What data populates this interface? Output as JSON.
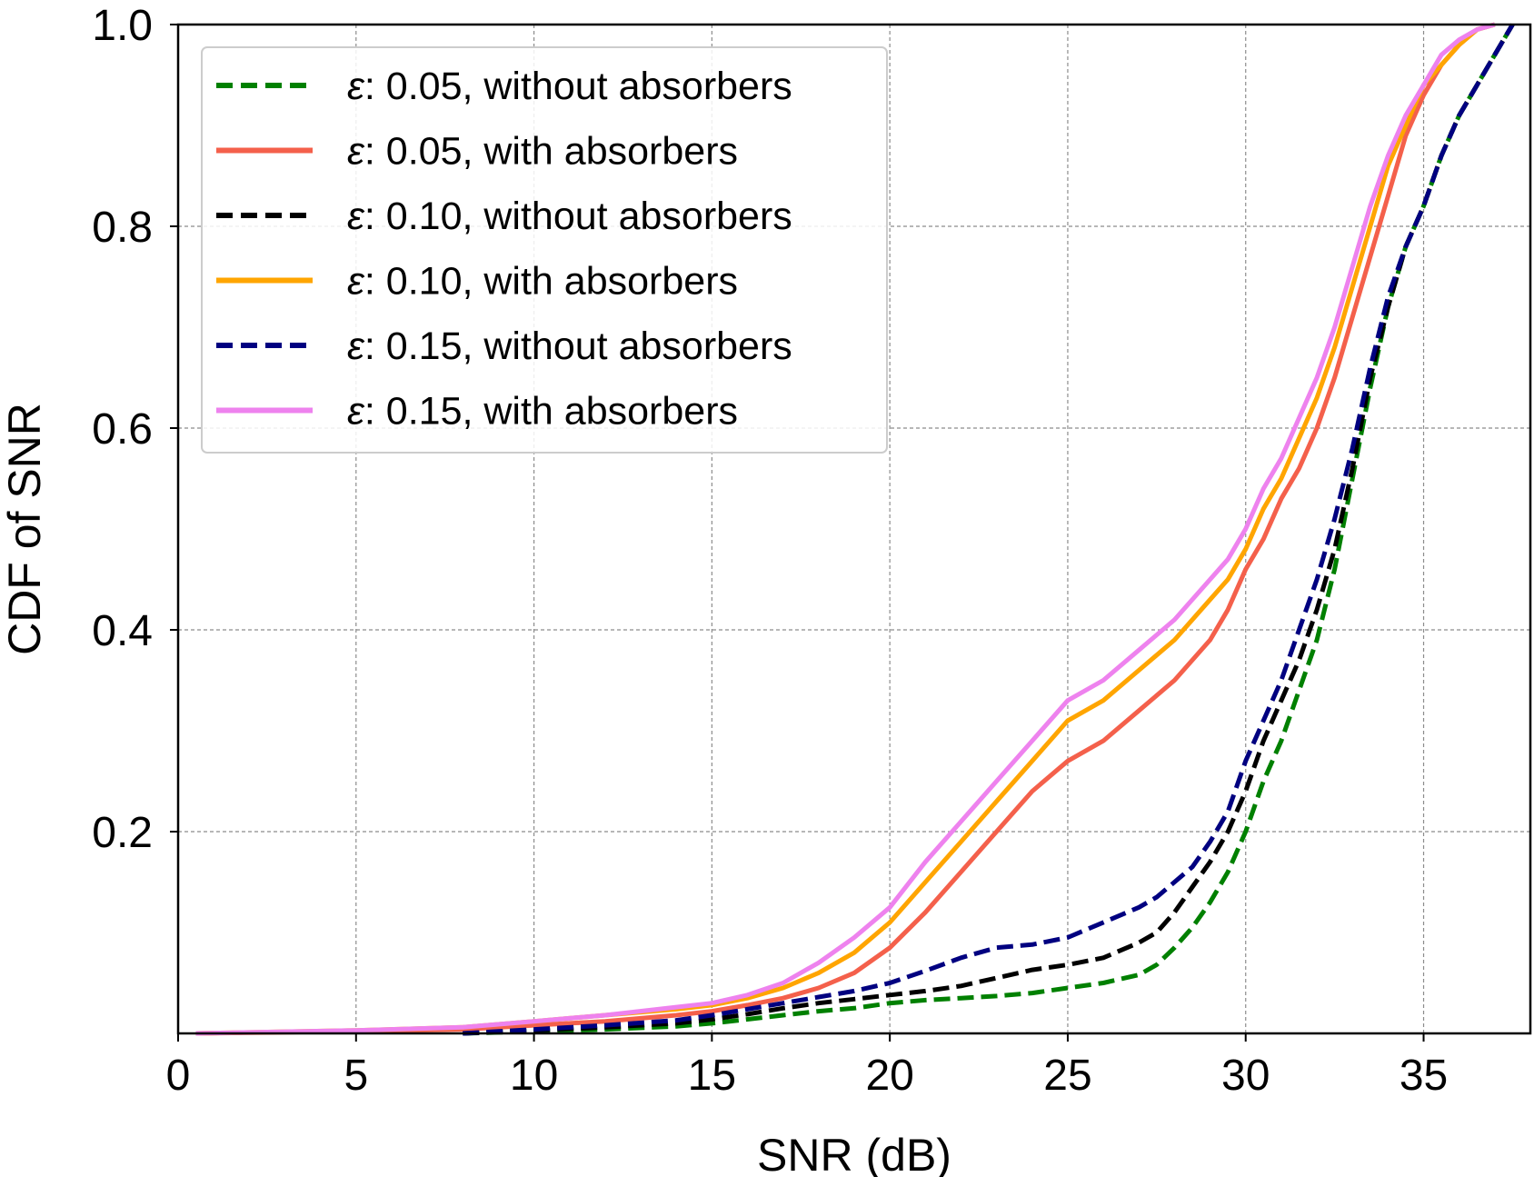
{
  "chart_data": {
    "type": "line",
    "xlabel": "SNR (dB)",
    "ylabel": "CDF of SNR",
    "xlim": [
      0,
      38
    ],
    "ylim": [
      0,
      1.0
    ],
    "xticks": [
      0,
      5,
      10,
      15,
      20,
      25,
      30,
      35
    ],
    "xtick_labels": [
      "0",
      "5",
      "10",
      "15",
      "20",
      "25",
      "30",
      "35"
    ],
    "yticks": [
      0.2,
      0.4,
      0.6,
      0.8,
      1.0
    ],
    "ytick_labels": [
      "0.2",
      "0.4",
      "0.6",
      "0.8",
      "1.0"
    ],
    "grid": true,
    "legend_position": "top-left",
    "series": [
      {
        "name_prefix": "ε",
        "name": ": 0.05, without absorbers",
        "color": "#008000",
        "style": "dashed",
        "x": [
          8,
          10,
          12,
          14,
          15,
          16,
          17,
          18,
          19,
          20,
          21,
          22,
          23,
          24,
          25,
          26,
          27,
          27.5,
          28,
          28.5,
          29,
          29.5,
          30,
          30.5,
          31,
          31.5,
          32,
          32.5,
          33,
          33.5,
          34,
          34.5,
          35,
          35.5,
          36,
          36.5,
          37,
          37.5
        ],
        "y": [
          0,
          0.002,
          0.004,
          0.007,
          0.01,
          0.014,
          0.018,
          0.022,
          0.025,
          0.03,
          0.033,
          0.035,
          0.037,
          0.04,
          0.045,
          0.05,
          0.058,
          0.068,
          0.085,
          0.105,
          0.13,
          0.16,
          0.2,
          0.25,
          0.29,
          0.34,
          0.39,
          0.46,
          0.55,
          0.64,
          0.72,
          0.78,
          0.82,
          0.87,
          0.91,
          0.94,
          0.97,
          1.0
        ]
      },
      {
        "name_prefix": "ε",
        "name": ": 0.05, with absorbers",
        "color": "#f4604b",
        "style": "solid",
        "x": [
          0.5,
          5,
          8,
          10,
          12,
          14,
          15,
          16,
          17,
          18,
          19,
          20,
          21,
          22,
          23,
          24,
          25,
          26,
          27,
          28,
          29,
          29.5,
          30,
          30.5,
          31,
          31.5,
          32,
          32.5,
          33,
          33.5,
          34,
          34.5,
          35,
          35.5,
          36,
          36.5,
          37
        ],
        "y": [
          0,
          0.002,
          0.004,
          0.008,
          0.012,
          0.018,
          0.022,
          0.028,
          0.035,
          0.045,
          0.06,
          0.085,
          0.12,
          0.16,
          0.2,
          0.24,
          0.27,
          0.29,
          0.32,
          0.35,
          0.39,
          0.42,
          0.46,
          0.49,
          0.53,
          0.56,
          0.6,
          0.65,
          0.71,
          0.77,
          0.83,
          0.89,
          0.93,
          0.96,
          0.98,
          0.995,
          1.0
        ]
      },
      {
        "name_prefix": "ε",
        "name": ": 0.10, without absorbers",
        "color": "#000000",
        "style": "dashed",
        "x": [
          8,
          10,
          12,
          14,
          15,
          16,
          17,
          18,
          19,
          20,
          21,
          22,
          23,
          24,
          25,
          26,
          27,
          27.5,
          28,
          28.5,
          29,
          29.5,
          30,
          30.5,
          31,
          31.5,
          32,
          32.5,
          33,
          33.5,
          34,
          34.5,
          35,
          35.5,
          36,
          36.5,
          37,
          37.5
        ],
        "y": [
          0,
          0.003,
          0.006,
          0.01,
          0.014,
          0.019,
          0.025,
          0.03,
          0.034,
          0.038,
          0.042,
          0.047,
          0.055,
          0.063,
          0.068,
          0.075,
          0.09,
          0.1,
          0.12,
          0.145,
          0.17,
          0.2,
          0.24,
          0.29,
          0.33,
          0.37,
          0.42,
          0.48,
          0.56,
          0.65,
          0.72,
          0.78,
          0.82,
          0.87,
          0.91,
          0.94,
          0.97,
          1.0
        ]
      },
      {
        "name_prefix": "ε",
        "name": ": 0.10, with absorbers",
        "color": "#ffa500",
        "style": "solid",
        "x": [
          0.5,
          5,
          8,
          10,
          12,
          14,
          15,
          16,
          17,
          18,
          19,
          20,
          21,
          22,
          23,
          24,
          25,
          26,
          27,
          28,
          29,
          29.5,
          30,
          30.5,
          31,
          31.5,
          32,
          32.5,
          33,
          33.5,
          34,
          34.5,
          35,
          35.5,
          36,
          36.5,
          37
        ],
        "y": [
          0,
          0.003,
          0.006,
          0.012,
          0.018,
          0.024,
          0.028,
          0.035,
          0.045,
          0.06,
          0.08,
          0.11,
          0.15,
          0.19,
          0.23,
          0.27,
          0.31,
          0.33,
          0.36,
          0.39,
          0.43,
          0.45,
          0.48,
          0.52,
          0.55,
          0.59,
          0.63,
          0.68,
          0.74,
          0.8,
          0.86,
          0.9,
          0.94,
          0.96,
          0.98,
          0.995,
          1.0
        ]
      },
      {
        "name_prefix": "ε",
        "name": ": 0.15, without absorbers",
        "color": "#000080",
        "style": "dashed",
        "x": [
          8,
          10,
          12,
          14,
          15,
          16,
          17,
          18,
          19,
          20,
          21,
          22,
          23,
          24,
          25,
          26,
          27,
          27.5,
          28,
          28.5,
          29,
          29.5,
          30,
          30.5,
          31,
          31.5,
          32,
          32.5,
          33,
          33.5,
          34,
          34.5,
          35,
          35.5,
          36,
          36.5,
          37,
          37.5
        ],
        "y": [
          0,
          0.004,
          0.008,
          0.013,
          0.018,
          0.024,
          0.03,
          0.036,
          0.042,
          0.05,
          0.062,
          0.075,
          0.085,
          0.088,
          0.095,
          0.11,
          0.125,
          0.135,
          0.15,
          0.165,
          0.19,
          0.22,
          0.27,
          0.31,
          0.35,
          0.4,
          0.45,
          0.51,
          0.58,
          0.66,
          0.73,
          0.78,
          0.82,
          0.87,
          0.91,
          0.94,
          0.97,
          1.0
        ]
      },
      {
        "name_prefix": "ε",
        "name": ": 0.15, with absorbers",
        "color": "#ee82ee",
        "style": "solid",
        "x": [
          0.5,
          5,
          8,
          10,
          12,
          14,
          15,
          16,
          17,
          18,
          19,
          20,
          21,
          22,
          23,
          24,
          25,
          26,
          27,
          28,
          29,
          29.5,
          30,
          30.5,
          31,
          31.5,
          32,
          32.5,
          33,
          33.5,
          34,
          34.5,
          35,
          35.5,
          36,
          36.5,
          37
        ],
        "y": [
          0,
          0.003,
          0.006,
          0.012,
          0.018,
          0.026,
          0.03,
          0.038,
          0.05,
          0.07,
          0.095,
          0.125,
          0.17,
          0.21,
          0.25,
          0.29,
          0.33,
          0.35,
          0.38,
          0.41,
          0.45,
          0.47,
          0.5,
          0.54,
          0.57,
          0.61,
          0.65,
          0.7,
          0.76,
          0.82,
          0.87,
          0.91,
          0.94,
          0.97,
          0.985,
          0.995,
          1.0
        ]
      }
    ]
  }
}
